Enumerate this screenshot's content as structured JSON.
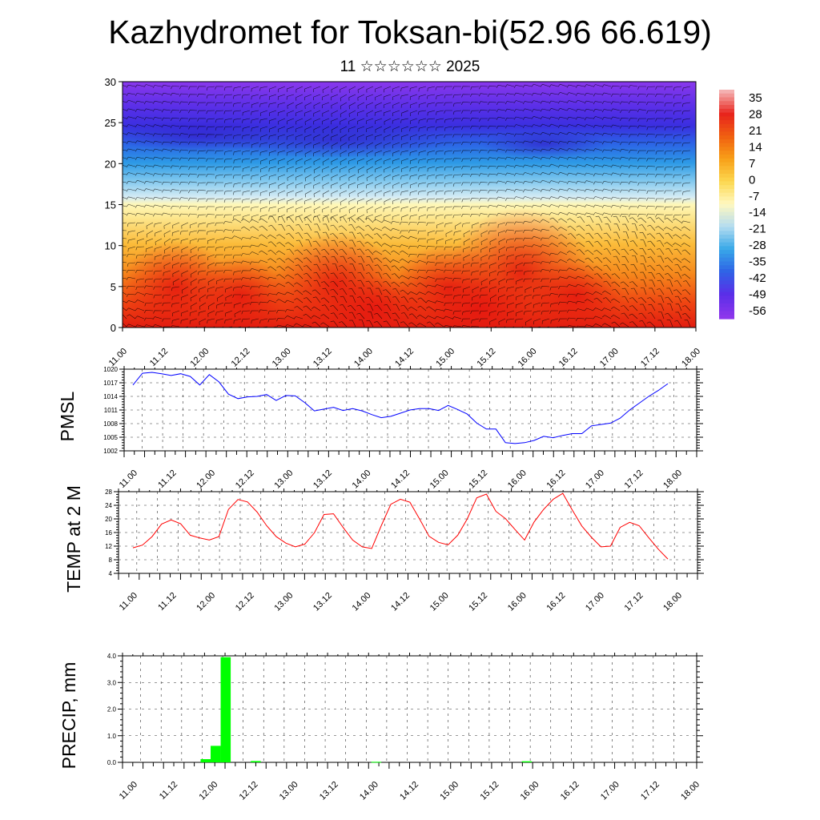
{
  "title": "Kazhydromet for Toksan-bi(52.96 66.619)",
  "subtitle": "11 ☆☆☆☆☆☆ 2025",
  "chart_data": [
    {
      "type": "heatmap",
      "name": "temperature-wind-cross-section",
      "ylim": [
        0,
        30
      ],
      "y_ticks": [
        0,
        5,
        10,
        15,
        20,
        25,
        30
      ],
      "x_ticks": [
        "11.00",
        "11.12",
        "12.00",
        "12.12",
        "13.00",
        "13.12",
        "14.00",
        "14.12",
        "15.00",
        "15.12",
        "16.00",
        "16.12",
        "17.00",
        "17.12",
        "18.00"
      ],
      "colorbar": {
        "labels": [
          "35",
          "28",
          "21",
          "14",
          "7",
          "0",
          "-7",
          "-14",
          "-21",
          "-28",
          "-35",
          "-42",
          "-49",
          "-56"
        ],
        "colors": [
          "#f4b0b0",
          "#e8241c",
          "#f06010",
          "#f8a018",
          "#fcd850",
          "#fff8c0",
          "#b4dcf0",
          "#38a8e8",
          "#2f63e6",
          "#5a2ee8",
          "#8c36ec"
        ]
      },
      "wind_barbs": true
    },
    {
      "type": "line",
      "ylabel": "PMSL",
      "ylim": [
        1002,
        1020
      ],
      "y_ticks": [
        1002,
        1005,
        1008,
        1011,
        1014,
        1017,
        1020
      ],
      "x_ticks": [
        "11.00",
        "11.12",
        "12.00",
        "12.12",
        "13.00",
        "13.12",
        "14.00",
        "14.12",
        "15.00",
        "15.12",
        "16.00",
        "16.12",
        "17.00",
        "17.12",
        "18.00"
      ],
      "x": [
        0,
        3,
        6,
        9,
        12,
        15,
        18,
        21,
        24,
        27,
        30,
        33,
        36,
        39,
        42,
        45,
        48,
        51,
        54,
        57,
        60,
        63,
        66,
        69,
        72,
        75,
        78,
        81,
        84,
        87,
        90,
        93,
        96,
        99,
        102,
        105,
        108,
        111,
        114,
        117,
        120,
        123,
        126,
        129,
        132,
        135,
        138,
        141,
        144,
        147,
        150,
        153,
        156,
        159,
        162,
        165,
        168
      ],
      "values": [
        1016.5,
        1019.1,
        1019.3,
        1019.0,
        1018.6,
        1019.0,
        1018.4,
        1016.5,
        1018.8,
        1017.2,
        1014.5,
        1013.5,
        1013.9,
        1014.0,
        1014.4,
        1013.1,
        1014.2,
        1014.1,
        1012.6,
        1010.8,
        1011.2,
        1011.6,
        1010.9,
        1011.3,
        1010.8,
        1010.0,
        1009.3,
        1009.6,
        1010.3,
        1011.0,
        1011.3,
        1011.3,
        1010.9,
        1012.0,
        1011.1,
        1010.1,
        1008.1,
        1006.8,
        1006.8,
        1003.8,
        1003.6,
        1003.8,
        1004.3,
        1005.2,
        1004.9,
        1005.4,
        1005.8,
        1005.8,
        1007.5,
        1007.8,
        1008.1,
        1009.2,
        1011.0,
        1012.5,
        1014.0,
        1015.3,
        1016.8
      ],
      "color": "#0000ff"
    },
    {
      "type": "line",
      "ylabel": "TEMP at 2 M",
      "ylim": [
        4,
        28
      ],
      "y_ticks": [
        4,
        8,
        12,
        16,
        20,
        24,
        28
      ],
      "x_ticks": [
        "11.00",
        "11.12",
        "12.00",
        "12.12",
        "13.00",
        "13.12",
        "14.00",
        "14.12",
        "15.00",
        "15.12",
        "16.00",
        "16.12",
        "17.00",
        "17.12",
        "18.00"
      ],
      "x": [
        0,
        3,
        6,
        9,
        12,
        15,
        18,
        21,
        24,
        27,
        30,
        33,
        36,
        39,
        42,
        45,
        48,
        51,
        54,
        57,
        60,
        63,
        66,
        69,
        72,
        75,
        78,
        81,
        84,
        87,
        90,
        93,
        96,
        99,
        102,
        105,
        108,
        111,
        114,
        117,
        120,
        123,
        126,
        129,
        132,
        135,
        138,
        141,
        144,
        147,
        150,
        153,
        156,
        159,
        162,
        165,
        168
      ],
      "values": [
        11.5,
        12.3,
        14.8,
        18.5,
        19.7,
        18.6,
        15.2,
        14.4,
        13.8,
        14.8,
        22.8,
        25.7,
        25.0,
        22.0,
        18.0,
        14.8,
        12.9,
        11.8,
        12.6,
        15.9,
        21.3,
        21.5,
        17.5,
        13.8,
        11.8,
        11.3,
        18.0,
        24.3,
        25.8,
        24.9,
        20.0,
        14.9,
        13.1,
        12.4,
        15.2,
        20.0,
        26.2,
        27.3,
        22.2,
        20.1,
        16.9,
        13.8,
        19.1,
        22.8,
        25.8,
        27.5,
        22.6,
        17.9,
        14.6,
        11.8,
        12.0,
        17.5,
        19.0,
        18.0,
        14.5,
        11.1,
        8.2
      ],
      "color": "#ff0000"
    },
    {
      "type": "bar",
      "ylabel": "PRECIP, mm",
      "ylim": [
        0,
        4
      ],
      "y_ticks": [
        "0.0",
        "1.0",
        "2.0",
        "3.0",
        "4.0"
      ],
      "x_ticks": [
        "11.00",
        "11.12",
        "12.00",
        "12.12",
        "13.00",
        "13.12",
        "14.00",
        "14.12",
        "15.00",
        "15.12",
        "16.00",
        "16.12",
        "17.00",
        "17.12",
        "18.00"
      ],
      "bars": [
        {
          "x": 21,
          "value": 0.12
        },
        {
          "x": 24,
          "value": 0.62
        },
        {
          "x": 27,
          "value": 3.95
        },
        {
          "x": 36,
          "value": 0.05
        },
        {
          "x": 72,
          "value": 0.02
        },
        {
          "x": 117,
          "value": 0.04
        }
      ],
      "color": "#00ff00"
    }
  ]
}
